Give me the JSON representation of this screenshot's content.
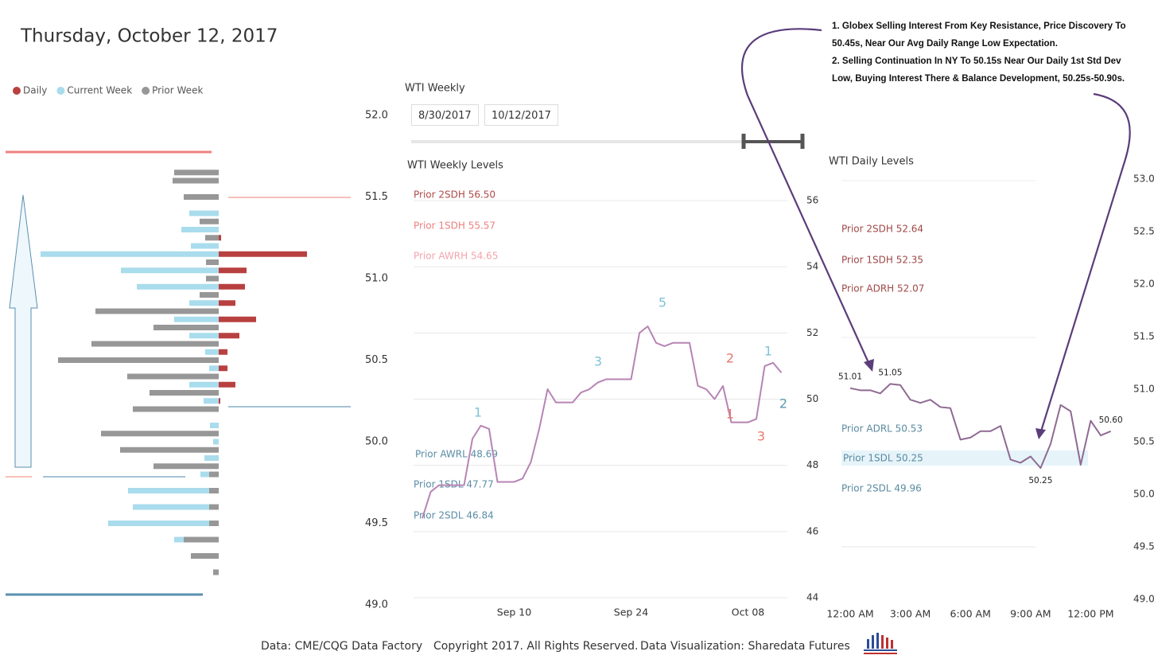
{
  "header": {
    "title": "Thursday, October 12, 2017"
  },
  "notes": [
    "1. Globex Selling Interest From Key Resistance, Price Discovery To 50.45s, Near Our Avg Daily Range Low Expectation.",
    "2. Selling Continuation In NY To 50.15s Near Our Daily 1st Std Dev Low, Buying Interest There & Balance Development, 50.25s-50.90s."
  ],
  "slicer": {
    "title": "WTI Weekly",
    "start": "8/30/2017",
    "end": "10/12/2017"
  },
  "footer": {
    "source": "Data: CME/CQG Data Factory",
    "copyright": "Copyright 2017. All Rights Reserved.",
    "credit": "Data Visualization: Sharedata Futures"
  },
  "chart_data": [
    {
      "type": "profile",
      "levels": [
        51.65,
        51.6,
        51.55,
        51.5,
        51.45,
        51.4,
        51.35,
        51.3,
        51.25,
        51.2,
        51.15,
        51.1,
        51.05,
        51.0,
        50.95,
        50.9,
        50.85,
        50.8,
        50.75,
        50.7,
        50.65,
        50.6,
        50.55,
        50.5,
        50.45,
        50.4,
        50.35,
        50.3,
        50.25,
        50.2,
        50.15,
        50.1,
        50.05,
        50.0,
        49.95,
        49.9,
        49.85,
        49.8,
        49.75,
        49.7,
        49.65,
        49.6,
        49.55,
        49.5,
        49.45,
        49.4,
        49.35,
        49.3,
        49.25,
        49.2
      ],
      "series": [
        {
          "name": "Daily",
          "color": "#b94040",
          "side": "right",
          "values": [
            null,
            null,
            null,
            null,
            null,
            null,
            null,
            null,
            3,
            null,
            111,
            null,
            35,
            null,
            33,
            null,
            21,
            null,
            47,
            null,
            26,
            null,
            11,
            null,
            11,
            null,
            21,
            null,
            2,
            null,
            null,
            null,
            null,
            null,
            null,
            null,
            null,
            null,
            null,
            null,
            null,
            null,
            null,
            null,
            null,
            null,
            null,
            null,
            null,
            null
          ]
        },
        {
          "name": "Current Week",
          "color": "#a9dcec",
          "side": "left",
          "values": [
            null,
            null,
            null,
            2,
            null,
            37,
            null,
            47,
            null,
            35,
            224,
            null,
            123,
            null,
            103,
            null,
            37,
            null,
            56,
            null,
            37,
            null,
            17,
            null,
            12,
            null,
            37,
            null,
            19,
            null,
            null,
            11,
            null,
            7,
            null,
            18,
            null,
            23,
            null,
            114,
            null,
            108,
            null,
            139,
            null,
            56,
            null,
            20,
            null,
            7
          ]
        },
        {
          "name": "Prior Week",
          "color": "#979797",
          "side": "left",
          "values": [
            56,
            58,
            null,
            44,
            null,
            null,
            24,
            null,
            17,
            null,
            null,
            16,
            null,
            16,
            null,
            24,
            null,
            155,
            null,
            82,
            null,
            160,
            null,
            202,
            null,
            115,
            null,
            87,
            null,
            108,
            null,
            null,
            148,
            null,
            124,
            null,
            82,
            12,
            null,
            12,
            null,
            12,
            null,
            12,
            null,
            44,
            null,
            35,
            null,
            7
          ]
        }
      ],
      "ylim": [
        49,
        52
      ],
      "yticks": [
        {
          "value": 49,
          "label": "49.0"
        },
        {
          "value": 49.5,
          "label": "49.5"
        },
        {
          "value": 50,
          "label": "50.0"
        },
        {
          "value": 50.5,
          "label": "50.5"
        },
        {
          "value": 51,
          "label": "51.0"
        },
        {
          "value": 51.5,
          "label": "51.5"
        },
        {
          "value": 52,
          "label": "52.0"
        }
      ],
      "legend": "top-left"
    },
    {
      "type": "line",
      "title": "WTI Weekly Levels",
      "color": "#b784b4",
      "x": [
        "Aug 30",
        "Aug 31",
        "Sep 01",
        "Sep 02",
        "Sep 03",
        "Sep 04",
        "Sep 05",
        "Sep 06",
        "Sep 07",
        "Sep 08",
        "Sep 09",
        "Sep 10",
        "Sep 11",
        "Sep 12",
        "Sep 13",
        "Sep 14",
        "Sep 15",
        "Sep 16",
        "Sep 17",
        "Sep 18",
        "Sep 19",
        "Sep 20",
        "Sep 21",
        "Sep 22",
        "Sep 23",
        "Sep 24",
        "Sep 25",
        "Sep 26",
        "Sep 27",
        "Sep 28",
        "Sep 29",
        "Sep 30",
        "Oct 01",
        "Oct 02",
        "Oct 03",
        "Oct 04",
        "Oct 05",
        "Oct 06",
        "Oct 07",
        "Oct 08",
        "Oct 09",
        "Oct 10",
        "Oct 11",
        "Oct 12"
      ],
      "values": [
        46.4,
        47.2,
        47.4,
        47.4,
        47.4,
        47.4,
        48.8,
        49.2,
        49.1,
        47.5,
        47.5,
        47.5,
        47.6,
        48.1,
        49.1,
        50.3,
        49.9,
        49.9,
        49.9,
        50.2,
        50.3,
        50.5,
        50.6,
        50.6,
        50.6,
        50.6,
        52.0,
        52.2,
        51.7,
        51.6,
        51.7,
        51.7,
        51.7,
        50.4,
        50.3,
        50.0,
        50.4,
        49.3,
        49.3,
        49.3,
        49.4,
        51.0,
        51.1,
        50.8
      ],
      "ylim": [
        44,
        56
      ],
      "yticks": [
        44,
        46,
        48,
        50,
        52,
        54,
        56
      ],
      "xticks": [
        "Sep 10",
        "Sep 24",
        "Oct 08"
      ],
      "grid": true,
      "levels": [
        {
          "label": "Prior 2SDH 56.50",
          "color": "#b04a4a"
        },
        {
          "label": "Prior 1SDH 55.57",
          "color": "#ec8080"
        },
        {
          "label": "Prior AWRH 54.65",
          "color": "#f2a4ac"
        },
        {
          "label": "Prior AWRL 48.69",
          "color": "#5a8da6"
        },
        {
          "label": "Prior 1SDL 47.77",
          "color": "#5a8da6"
        },
        {
          "label": "Prior 2SDL 46.84",
          "color": "#5a8da6"
        }
      ],
      "waves": [
        {
          "text": "1",
          "color": "#7ec3d9"
        },
        {
          "text": "3",
          "color": "#7ec3d9"
        },
        {
          "text": "5",
          "color": "#7ec3d9"
        },
        {
          "text": "2",
          "color": "#e8786c"
        },
        {
          "text": "1",
          "color": "#e8786c"
        },
        {
          "text": "3",
          "color": "#e8786c"
        },
        {
          "text": "1",
          "color": "#7ec3d9"
        },
        {
          "text": "2",
          "color": "#5a9ab0"
        }
      ]
    },
    {
      "type": "line",
      "title": "WTI Daily Levels",
      "color": "#8f6a92",
      "x": [
        "12:00 AM",
        "12:30 AM",
        "1:00 AM",
        "1:30 AM",
        "2:00 AM",
        "2:30 AM",
        "3:00 AM",
        "3:30 AM",
        "4:00 AM",
        "4:30 AM",
        "5:00 AM",
        "5:30 AM",
        "6:00 AM",
        "6:30 AM",
        "7:00 AM",
        "7:30 AM",
        "8:00 AM",
        "8:30 AM",
        "9:00 AM",
        "9:30 AM",
        "10:00 AM",
        "10:30 AM",
        "11:00 AM",
        "11:30 AM",
        "12:00 PM",
        "12:30 PM",
        "1:00 PM"
      ],
      "values": [
        51.01,
        50.99,
        50.99,
        50.96,
        51.05,
        51.04,
        50.9,
        50.87,
        50.9,
        50.83,
        50.82,
        50.52,
        50.54,
        50.6,
        50.6,
        50.65,
        50.33,
        50.3,
        50.36,
        50.25,
        50.48,
        50.85,
        50.79,
        50.28,
        50.7,
        50.56,
        50.6
      ],
      "value_labels": [
        "51.01",
        null,
        null,
        null,
        "51.05",
        null,
        null,
        null,
        null,
        null,
        null,
        null,
        null,
        null,
        null,
        null,
        null,
        null,
        null,
        "50.25",
        null,
        null,
        null,
        null,
        null,
        null,
        "50.60"
      ],
      "ylim": [
        49,
        53
      ],
      "yticks": [
        {
          "value": 49,
          "label": "49.0"
        },
        {
          "value": 49.5,
          "label": "49.5"
        },
        {
          "value": 50,
          "label": "50.0"
        },
        {
          "value": 50.5,
          "label": "50.5"
        },
        {
          "value": 51,
          "label": "51.0"
        },
        {
          "value": 51.5,
          "label": "51.5"
        },
        {
          "value": 52,
          "label": "52.0"
        },
        {
          "value": 52.5,
          "label": "52.5"
        },
        {
          "value": 53,
          "label": "53.0"
        }
      ],
      "xticks": [
        "12:00 AM",
        "3:00 AM",
        "6:00 AM",
        "9:00 AM",
        "12:00 PM"
      ],
      "grid": false,
      "levels": [
        {
          "label": "Prior 2SDH 52.64",
          "color": "#a04848"
        },
        {
          "label": "Prior 1SDH 52.35",
          "color": "#a04848"
        },
        {
          "label": "Prior ADRH 52.07",
          "color": "#a04848"
        },
        {
          "label": "Prior ADRL 50.53",
          "color": "#5a8aa0"
        },
        {
          "label": "Prior 1SDL 50.25",
          "color": "#5a8aa0"
        },
        {
          "label": "Prior 2SDL 49.96",
          "color": "#5a8aa0"
        }
      ]
    }
  ]
}
